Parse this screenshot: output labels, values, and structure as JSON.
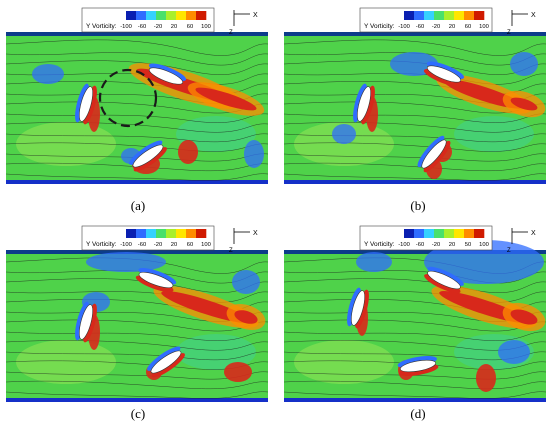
{
  "figure": {
    "colorbar": {
      "label": "Y Vorticity:",
      "ticks_abc": [
        "-100",
        "-60",
        "-20",
        "20",
        "60",
        "100"
      ],
      "ticks_d": [
        "-100",
        "-60",
        "-20",
        "20",
        "50",
        "100"
      ],
      "colors": [
        "#0a1fb0",
        "#2f6cff",
        "#35d1ff",
        "#49e06b",
        "#a9ef2c",
        "#ffe600",
        "#ff8c00",
        "#d01a00"
      ]
    },
    "axis_labels": {
      "x": "X",
      "z": "Z"
    },
    "panels": [
      {
        "id": "a",
        "caption": "(a)",
        "highlight_circle": true
      },
      {
        "id": "b",
        "caption": "(b)",
        "highlight_circle": false
      },
      {
        "id": "c",
        "caption": "(c)",
        "highlight_circle": false
      },
      {
        "id": "d",
        "caption": "(d)",
        "highlight_circle": false
      }
    ],
    "field_color": "#4fd24a",
    "wall_color": "#1530c8",
    "wake_color": "#d8281b"
  }
}
